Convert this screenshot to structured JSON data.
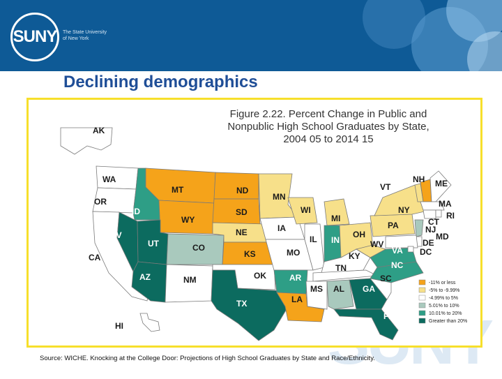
{
  "header": {
    "logo_text": "SUNY",
    "university_line1": "The State University",
    "university_line2": "of New York",
    "watermark": "SUNY"
  },
  "slide_title": "Declining demographics",
  "figure": {
    "title_line1": "Figure 2.22.  Percent Change in Public and",
    "title_line2": "Nonpublic High School Graduates by State,",
    "title_line3": "2004 05 to 2014 15"
  },
  "legend": [
    {
      "label": "-11% or less",
      "color": "#f5a31a"
    },
    {
      "label": "-5% to -9.99%",
      "color": "#f7e08a"
    },
    {
      "label": "-4.99% to 5%",
      "color": "#ffffff"
    },
    {
      "label": "5.01% to 10%",
      "color": "#a9c9bd"
    },
    {
      "label": "10.01% to 20%",
      "color": "#2e9e86"
    },
    {
      "label": "Greater than 20%",
      "color": "#0c6b5f"
    }
  ],
  "states": [
    {
      "abbr": "WA",
      "cat": 2
    },
    {
      "abbr": "OR",
      "cat": 2
    },
    {
      "abbr": "CA",
      "cat": 2
    },
    {
      "abbr": "ID",
      "cat": 4
    },
    {
      "abbr": "NV",
      "cat": 5
    },
    {
      "abbr": "AK",
      "cat": 2
    },
    {
      "abbr": "MT",
      "cat": 0
    },
    {
      "abbr": "WY",
      "cat": 0
    },
    {
      "abbr": "UT",
      "cat": 5
    },
    {
      "abbr": "AZ",
      "cat": 5
    },
    {
      "abbr": "CO",
      "cat": 3
    },
    {
      "abbr": "NM",
      "cat": 2
    },
    {
      "abbr": "ND",
      "cat": 0
    },
    {
      "abbr": "SD",
      "cat": 0
    },
    {
      "abbr": "NE",
      "cat": 1
    },
    {
      "abbr": "KS",
      "cat": 0
    },
    {
      "abbr": "OK",
      "cat": 2
    },
    {
      "abbr": "TX",
      "cat": 5
    },
    {
      "abbr": "MN",
      "cat": 1
    },
    {
      "abbr": "IA",
      "cat": 2
    },
    {
      "abbr": "MO",
      "cat": 2
    },
    {
      "abbr": "AR",
      "cat": 4
    },
    {
      "abbr": "LA",
      "cat": 0
    },
    {
      "abbr": "WI",
      "cat": 1
    },
    {
      "abbr": "IL",
      "cat": 2
    },
    {
      "abbr": "MI",
      "cat": 1
    },
    {
      "abbr": "IN",
      "cat": 4
    },
    {
      "abbr": "KY",
      "cat": 2
    },
    {
      "abbr": "TN",
      "cat": 2
    },
    {
      "abbr": "MS",
      "cat": 2
    },
    {
      "abbr": "AL",
      "cat": 3
    },
    {
      "abbr": "GA",
      "cat": 5
    },
    {
      "abbr": "FL",
      "cat": 5
    },
    {
      "abbr": "OH",
      "cat": 1
    },
    {
      "abbr": "WV",
      "cat": 1
    },
    {
      "abbr": "VA",
      "cat": 4
    },
    {
      "abbr": "NC",
      "cat": 4
    },
    {
      "abbr": "SC",
      "cat": 2
    },
    {
      "abbr": "PA",
      "cat": 1
    },
    {
      "abbr": "NY",
      "cat": 1
    },
    {
      "abbr": "VT",
      "cat": 1
    },
    {
      "abbr": "NH",
      "cat": 0
    },
    {
      "abbr": "ME",
      "cat": 2
    },
    {
      "abbr": "MA",
      "cat": 2
    },
    {
      "abbr": "CT",
      "cat": 2
    },
    {
      "abbr": "RI",
      "cat": 2
    },
    {
      "abbr": "NJ",
      "cat": 3
    },
    {
      "abbr": "DE",
      "cat": 2
    },
    {
      "abbr": "MD",
      "cat": 2
    },
    {
      "abbr": "DC",
      "cat": 2
    },
    {
      "abbr": "HI",
      "cat": 2
    }
  ],
  "source": "Source: WICHE. Knocking at the College Door: Projections of High School Graduates by State and Race/Ethnicity."
}
